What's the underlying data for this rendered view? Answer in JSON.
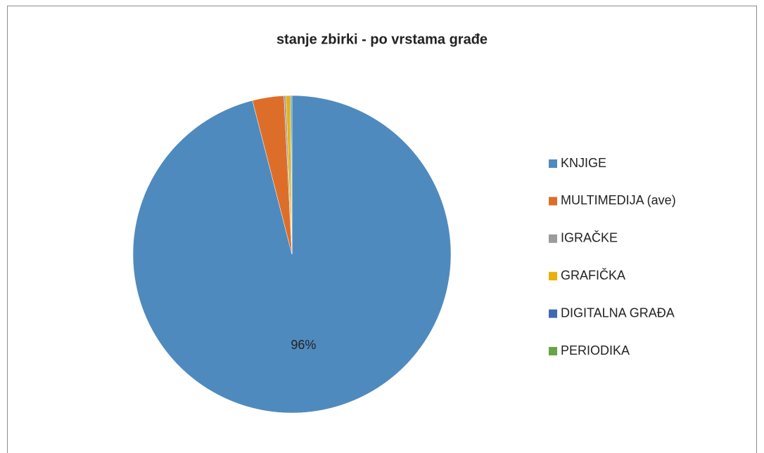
{
  "chart_data": {
    "type": "pie",
    "title": "stanje zbirki - po vrstama građe",
    "categories": [
      "KNJIGE",
      "MULTIMEDIJA (ave)",
      "IGRAČKE",
      "GRAFIČKA",
      "DIGITALNA GRAĐA",
      "PERIODIKA"
    ],
    "values": [
      96,
      3.2,
      0.2,
      0.4,
      0.1,
      0.1
    ],
    "value_labels": [
      "96%",
      null,
      null,
      null,
      null,
      null
    ],
    "colors": [
      "#4e8abe",
      "#dd6e2a",
      "#9b9b9b",
      "#e6b10a",
      "#3f68b0",
      "#6aa344"
    ],
    "legend": "right"
  }
}
